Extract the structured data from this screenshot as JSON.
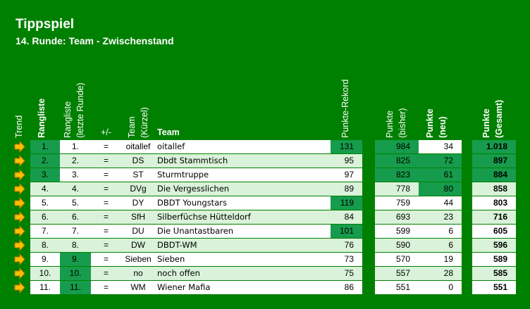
{
  "title": "Tippspiel",
  "subtitle": "14. Runde: Team - Zwischenstand",
  "headers": {
    "trend": "Trend",
    "rangliste": "Rangliste",
    "rangliste_letzte_1": "Rangliste",
    "rangliste_letzte_2": "(letzte Runde)",
    "plusminus": "+/-",
    "team_kuerzel_1": "Team",
    "team_kuerzel_2": "(Kürzel)",
    "team": "Team",
    "punkte_rekord": "Punkte-Rekord",
    "punkte_bisher_1": "Punkte",
    "punkte_bisher_2": "(bisher)",
    "punkte_neu_1": "Punkte",
    "punkte_neu_2": "(neu)",
    "punkte_gesamt_1": "Punkte",
    "punkte_gesamt_2": "(Gesamt)"
  },
  "colors": {
    "background": "#008000",
    "highlight": "#169c4c",
    "light_row": "#d9f2d9",
    "white_row": "#ffffff",
    "arrow_fill": "#ffc000",
    "arrow_stroke": "#c07000"
  },
  "trend_icon": "right-arrow-icon",
  "rows": [
    {
      "rank": "1.",
      "last": "1.",
      "pm": "=",
      "abbr": "oitallef",
      "team": "oitallef",
      "rekord": "131",
      "bisher": "984",
      "neu": "34",
      "gesamt": "1.018"
    },
    {
      "rank": "2.",
      "last": "2.",
      "pm": "=",
      "abbr": "DS",
      "team": "Dbdt Stammtisch",
      "rekord": "95",
      "bisher": "825",
      "neu": "72",
      "gesamt": "897"
    },
    {
      "rank": "3.",
      "last": "3.",
      "pm": "=",
      "abbr": "ST",
      "team": "Sturmtruppe",
      "rekord": "97",
      "bisher": "823",
      "neu": "61",
      "gesamt": "884"
    },
    {
      "rank": "4.",
      "last": "4.",
      "pm": "=",
      "abbr": "DVg",
      "team": "Die Vergesslichen",
      "rekord": "89",
      "bisher": "778",
      "neu": "80",
      "gesamt": "858"
    },
    {
      "rank": "5.",
      "last": "5.",
      "pm": "=",
      "abbr": "DY",
      "team": "DBDT Youngstars",
      "rekord": "119",
      "bisher": "759",
      "neu": "44",
      "gesamt": "803"
    },
    {
      "rank": "6.",
      "last": "6.",
      "pm": "=",
      "abbr": "SfH",
      "team": "Silberfüchse Hütteldorf",
      "rekord": "84",
      "bisher": "693",
      "neu": "23",
      "gesamt": "716"
    },
    {
      "rank": "7.",
      "last": "7.",
      "pm": "=",
      "abbr": "DU",
      "team": "Die Unantastbaren",
      "rekord": "101",
      "bisher": "599",
      "neu": "6",
      "gesamt": "605"
    },
    {
      "rank": "8.",
      "last": "8.",
      "pm": "=",
      "abbr": "DW",
      "team": "DBDT-WM",
      "rekord": "76",
      "bisher": "590",
      "neu": "6",
      "gesamt": "596"
    },
    {
      "rank": "9.",
      "last": "9.",
      "pm": "=",
      "abbr": "Sieben",
      "team": "Sieben",
      "rekord": "73",
      "bisher": "570",
      "neu": "19",
      "gesamt": "589"
    },
    {
      "rank": "10.",
      "last": "10.",
      "pm": "=",
      "abbr": "no",
      "team": "noch offen",
      "rekord": "75",
      "bisher": "557",
      "neu": "28",
      "gesamt": "585"
    },
    {
      "rank": "11.",
      "last": "11.",
      "pm": "=",
      "abbr": "WM",
      "team": "Wiener Mafia",
      "rekord": "86",
      "bisher": "551",
      "neu": "0",
      "gesamt": "551"
    }
  ],
  "highlights": {
    "rank": [
      true,
      true,
      true,
      false,
      false,
      false,
      false,
      false,
      false,
      false,
      false
    ],
    "last": [
      false,
      false,
      false,
      false,
      false,
      false,
      false,
      false,
      true,
      true,
      true
    ],
    "rekord": [
      true,
      false,
      false,
      false,
      true,
      false,
      true,
      false,
      false,
      false,
      false
    ],
    "bisher": [
      true,
      true,
      true,
      false,
      false,
      false,
      false,
      false,
      false,
      false,
      false
    ],
    "neu": [
      false,
      true,
      true,
      true,
      false,
      false,
      false,
      false,
      false,
      false,
      false
    ],
    "gesamt": [
      true,
      true,
      true,
      false,
      false,
      false,
      false,
      false,
      false,
      false,
      false
    ]
  }
}
